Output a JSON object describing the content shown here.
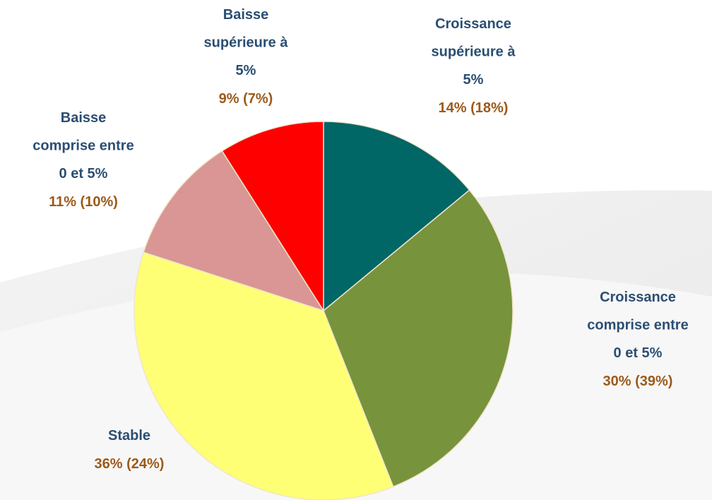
{
  "chart_data": {
    "type": "pie",
    "categories": [
      "Croissance\nsupérieure à\n5%",
      "Croissance\ncomprise entre\n0 et 5%",
      "Stable",
      "Baisse\ncomprise entre\n0 et 5%",
      "Baisse\nsupérieure à\n5%"
    ],
    "values": [
      14,
      30,
      36,
      11,
      9
    ],
    "value_labels": [
      "14% (18%)",
      "30% (39%)",
      "36% (24%)",
      "11% (10%)",
      "9% (7%)"
    ],
    "colors": [
      "#006666",
      "#77933c",
      "#ffff75",
      "#d99694",
      "#ff0000"
    ]
  }
}
